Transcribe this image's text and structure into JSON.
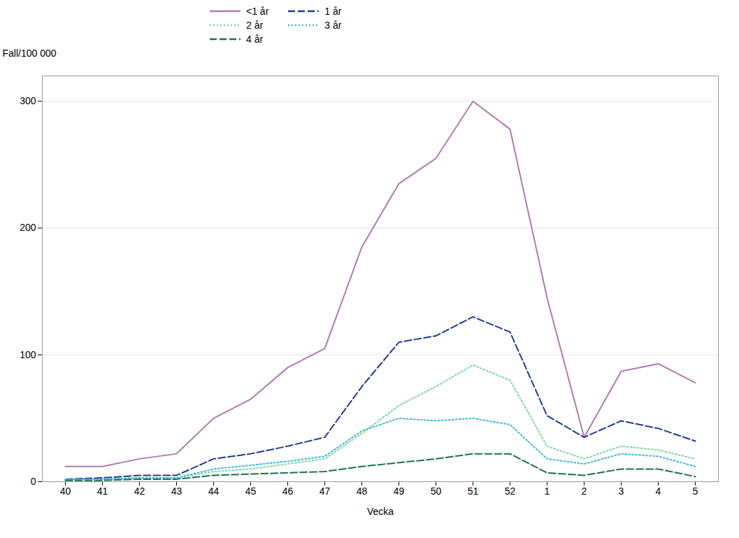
{
  "chart_data": {
    "type": "line",
    "xlabel": "Vecka",
    "ylabel": "Fall/100 000",
    "categories": [
      "40",
      "41",
      "42",
      "43",
      "44",
      "45",
      "46",
      "47",
      "48",
      "49",
      "50",
      "51",
      "52",
      "1",
      "2",
      "3",
      "4",
      "5"
    ],
    "series": [
      {
        "name": "<1 år",
        "color": "#b07ab0",
        "line_style": "solid",
        "values": [
          12,
          12,
          18,
          22,
          50,
          65,
          90,
          105,
          185,
          235,
          255,
          300,
          278,
          145,
          35,
          87,
          93,
          78
        ]
      },
      {
        "name": "1 år",
        "color": "#1f3a8f",
        "line_style": "dashed",
        "values": [
          2,
          3,
          5,
          5,
          18,
          22,
          28,
          35,
          75,
          110,
          115,
          130,
          118,
          52,
          35,
          48,
          42,
          32
        ]
      },
      {
        "name": "2 år",
        "color": "#80d8a0",
        "line_style": "dotted",
        "values": [
          2,
          2,
          3,
          3,
          8,
          10,
          14,
          18,
          38,
          60,
          75,
          92,
          80,
          28,
          18,
          28,
          25,
          18
        ]
      },
      {
        "name": "3 år",
        "color": "#40b8d8",
        "line_style": "dotted",
        "values": [
          2,
          2,
          3,
          3,
          10,
          13,
          16,
          20,
          40,
          50,
          48,
          50,
          45,
          18,
          14,
          22,
          20,
          12
        ]
      },
      {
        "name": "4 år",
        "color": "#1a7050",
        "line_style": "dashed",
        "values": [
          1,
          1,
          2,
          2,
          5,
          6,
          7,
          8,
          12,
          15,
          18,
          22,
          22,
          7,
          5,
          10,
          10,
          4
        ]
      }
    ],
    "ylim": [
      0,
      320
    ],
    "yticks": [
      0,
      100,
      200,
      300
    ],
    "grid": true,
    "legend": "top"
  }
}
